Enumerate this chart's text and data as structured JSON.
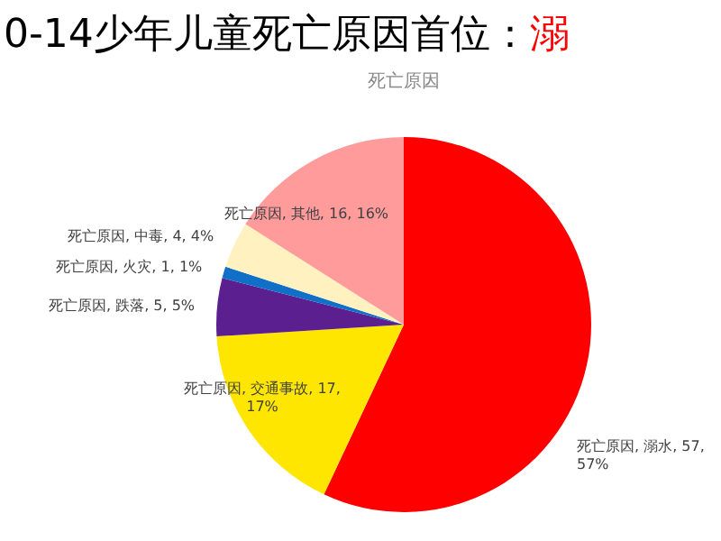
{
  "chart_data": {
    "type": "pie",
    "title": "0-14少年儿童死亡原因首位：溺",
    "subtitle": "死亡原因",
    "categories": [
      "死亡原因, 溺水",
      "死亡原因, 交通事故",
      "死亡原因, 跌落",
      "死亡原因, 火灾",
      "死亡原因, 中毒",
      "死亡原因, 其他"
    ],
    "values": [
      57,
      17,
      5,
      1,
      4,
      16
    ],
    "colors": [
      "#ff0000",
      "#ffe600",
      "#5b1f8f",
      "#1070c8",
      "#fff2c0",
      "#ff9b9b"
    ],
    "value_labels": [
      "57, 57%",
      "17, 17%",
      "5, 5%",
      "1, 1%",
      "4, 4%",
      "16, 16%"
    ],
    "legend": false
  }
}
